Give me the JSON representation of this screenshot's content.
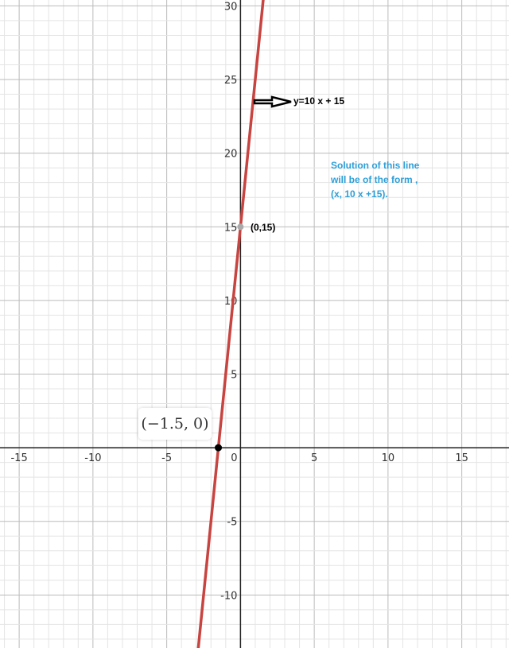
{
  "chart_data": {
    "type": "line",
    "xlim": [
      -16.3,
      18.2
    ],
    "ylim": [
      -13.6,
      30.4
    ],
    "grid": true,
    "x_ticks": [
      -15,
      -10,
      -5,
      0,
      5,
      10,
      15
    ],
    "y_ticks": [
      -10,
      -5,
      5,
      10,
      15,
      20,
      25,
      30
    ],
    "series": [
      {
        "equation": "y=10x+15",
        "slope": 10,
        "intercept": 15,
        "color": "#c74440"
      }
    ],
    "points": [
      {
        "x": 0,
        "y": 15,
        "label": "(0,15)",
        "color": "#aaaaaa"
      },
      {
        "x": -1.5,
        "y": 0,
        "label": "(−1.5, 0)",
        "color": "#000000"
      }
    ],
    "annotations": {
      "equation_label": "y=10 x + 15",
      "note_lines": [
        "Solution of this line",
        "will be of the form ,",
        "(x, 10 x +15)."
      ]
    }
  }
}
